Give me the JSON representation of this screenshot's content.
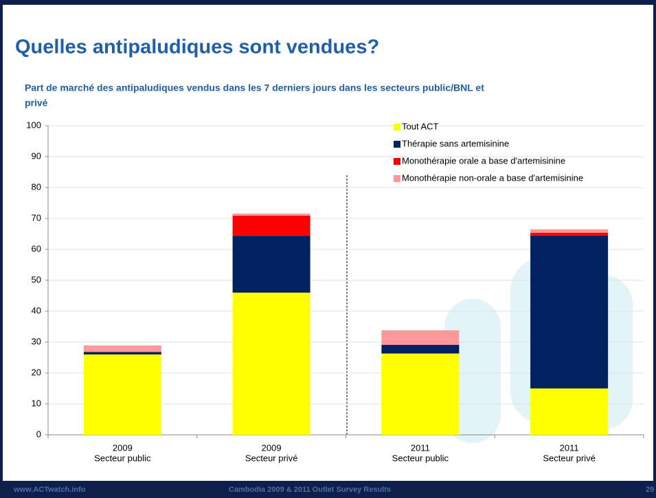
{
  "slide": {
    "title": "Quelles antipaludiques sont vendues?"
  },
  "chart_data": {
    "type": "stacked_bar",
    "title": "Part de marché des antipaludiques vendus dans les 7 derniers jours dans les secteurs public/BNL et",
    "subtitle": "privé",
    "categories": [
      [
        "2009",
        "Secteur public"
      ],
      [
        "2009",
        "Secteur privé"
      ],
      [
        "2011",
        "Secteur public"
      ],
      [
        "2011",
        "Secteur privé"
      ]
    ],
    "series": [
      {
        "name": "Tout ACT",
        "color": "#ffff00",
        "values": [
          26,
          46,
          26.3,
          15
        ]
      },
      {
        "name": "Thérapie sans artemisinine",
        "color": "#002060",
        "values": [
          0.8,
          18.4,
          2.8,
          49.5
        ]
      },
      {
        "name": "Monothérapie orale a base d'artemisinine",
        "color": "#ff0000",
        "values": [
          0,
          6.5,
          0,
          0.9
        ]
      },
      {
        "name": "Monothérapie non-orale a base d'artemisinine",
        "color": "#ff9999",
        "values": [
          2.1,
          0.7,
          4.7,
          1.1
        ]
      }
    ],
    "ylim": [
      0,
      100
    ],
    "yticks": [
      0,
      10,
      20,
      30,
      40,
      50,
      60,
      70,
      80,
      90,
      100
    ],
    "grid": true
  },
  "footer": {
    "left": "www.ACTwatch.info",
    "center": "Cambodia 2009 & 2011 Outlet Survey Results",
    "page": "29"
  }
}
